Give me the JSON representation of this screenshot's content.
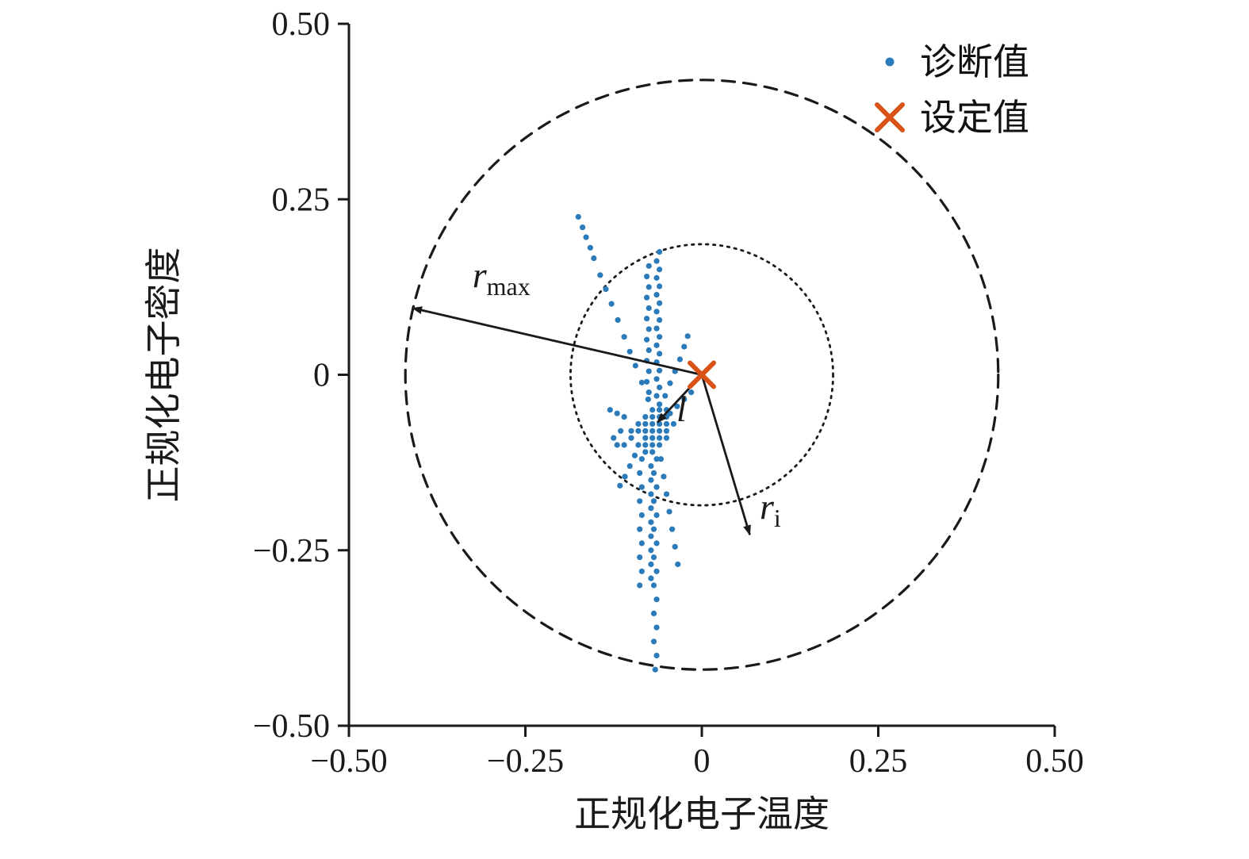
{
  "figure": {
    "background": "#ffffff",
    "axis_color": "#1a1a1a",
    "point_color": "#2b7bba",
    "set_color": "#d95319"
  },
  "chart_data": {
    "type": "scatter",
    "title": "",
    "xlabel": "正规化电子温度",
    "ylabel": "正规化电子密度",
    "xlim": [
      -0.5,
      0.5
    ],
    "ylim": [
      -0.5,
      0.5
    ],
    "grid": false,
    "legend_position": "upper right",
    "xticks": [
      {
        "value": -0.5,
        "label": "−0.50"
      },
      {
        "value": -0.25,
        "label": "−0.25"
      },
      {
        "value": 0,
        "label": "0"
      },
      {
        "value": 0.25,
        "label": "0.25"
      },
      {
        "value": 0.5,
        "label": "0.50"
      }
    ],
    "yticks": [
      {
        "value": -0.5,
        "label": "−0.50"
      },
      {
        "value": -0.25,
        "label": "−0.25"
      },
      {
        "value": 0,
        "label": "0"
      },
      {
        "value": 0.25,
        "label": "0.25"
      },
      {
        "value": 0.5,
        "label": "0.50"
      }
    ],
    "legend": [
      {
        "label": "诊断值",
        "marker": "dot",
        "color": "#2b7bba"
      },
      {
        "label": "设定值",
        "marker": "x",
        "color": "#d95319"
      }
    ],
    "circles": [
      {
        "cx": 0,
        "cy": 0,
        "r": 0.42,
        "style": "dashed"
      },
      {
        "cx": 0,
        "cy": 0,
        "r": 0.186,
        "style": "dotted"
      }
    ],
    "set_point": {
      "x": 0,
      "y": 0
    },
    "annotations": [
      {
        "text": "r",
        "sub": "max",
        "from": [
          0,
          0
        ],
        "to": [
          -0.41,
          0.095
        ],
        "label_at": [
          -0.325,
          0.125
        ]
      },
      {
        "text": "l",
        "sub": "",
        "from": [
          0,
          0
        ],
        "to": [
          -0.063,
          -0.068
        ],
        "label_at": [
          -0.036,
          -0.066
        ]
      },
      {
        "text": "r",
        "sub": "i",
        "from": [
          0,
          0
        ],
        "to": [
          0.068,
          -0.228
        ],
        "label_at": [
          0.082,
          -0.205
        ]
      }
    ],
    "series": [
      {
        "name": "诊断值",
        "points": [
          [
            -0.05,
            -0.05
          ],
          [
            -0.06,
            -0.05
          ],
          [
            -0.07,
            -0.05
          ],
          [
            -0.08,
            -0.06
          ],
          [
            -0.05,
            -0.06
          ],
          [
            -0.06,
            -0.06
          ],
          [
            -0.07,
            -0.06
          ],
          [
            -0.04,
            -0.07
          ],
          [
            -0.05,
            -0.07
          ],
          [
            -0.06,
            -0.07
          ],
          [
            -0.07,
            -0.07
          ],
          [
            -0.08,
            -0.07
          ],
          [
            -0.09,
            -0.07
          ],
          [
            -0.05,
            -0.08
          ],
          [
            -0.06,
            -0.08
          ],
          [
            -0.07,
            -0.08
          ],
          [
            -0.08,
            -0.08
          ],
          [
            -0.09,
            -0.08
          ],
          [
            -0.1,
            -0.08
          ],
          [
            -0.06,
            -0.09
          ],
          [
            -0.07,
            -0.09
          ],
          [
            -0.08,
            -0.09
          ],
          [
            -0.05,
            -0.09
          ],
          [
            -0.1,
            -0.09
          ],
          [
            -0.06,
            -0.1
          ],
          [
            -0.07,
            -0.1
          ],
          [
            -0.08,
            -0.1
          ],
          [
            -0.09,
            -0.1
          ],
          [
            -0.07,
            -0.11
          ],
          [
            -0.08,
            -0.11
          ],
          [
            -0.11,
            -0.06
          ],
          [
            -0.12,
            -0.055
          ],
          [
            -0.13,
            -0.05
          ],
          [
            -0.115,
            -0.08
          ],
          [
            -0.125,
            -0.09
          ],
          [
            -0.11,
            -0.1
          ],
          [
            -0.12,
            -0.1
          ],
          [
            -0.175,
            0.225
          ],
          [
            -0.169,
            0.21
          ],
          [
            -0.164,
            0.196
          ],
          [
            -0.158,
            0.181
          ],
          [
            -0.153,
            0.166
          ],
          [
            -0.144,
            0.142
          ],
          [
            -0.136,
            0.122
          ],
          [
            -0.128,
            0.101
          ],
          [
            -0.119,
            0.078
          ],
          [
            -0.11,
            0.054
          ],
          [
            -0.102,
            0.033
          ],
          [
            -0.094,
            0.013
          ],
          [
            -0.085,
            -0.011
          ],
          [
            -0.076,
            -0.035
          ],
          [
            -0.06,
            0.175
          ],
          [
            -0.064,
            0.162
          ],
          [
            -0.06,
            0.15
          ],
          [
            -0.064,
            0.138
          ],
          [
            -0.06,
            0.126
          ],
          [
            -0.064,
            0.114
          ],
          [
            -0.06,
            0.102
          ],
          [
            -0.064,
            0.09
          ],
          [
            -0.06,
            0.078
          ],
          [
            -0.064,
            0.066
          ],
          [
            -0.06,
            0.054
          ],
          [
            -0.064,
            0.042
          ],
          [
            -0.06,
            0.03
          ],
          [
            -0.064,
            0.018
          ],
          [
            -0.06,
            0.006
          ],
          [
            -0.064,
            -0.006
          ],
          [
            -0.06,
            -0.018
          ],
          [
            -0.064,
            -0.03
          ],
          [
            -0.06,
            -0.042
          ],
          [
            -0.075,
            0.155
          ],
          [
            -0.078,
            0.14
          ],
          [
            -0.075,
            0.125
          ],
          [
            -0.078,
            0.11
          ],
          [
            -0.075,
            0.095
          ],
          [
            -0.078,
            0.08
          ],
          [
            -0.075,
            0.065
          ],
          [
            -0.078,
            0.05
          ],
          [
            -0.075,
            0.035
          ],
          [
            -0.078,
            0.02
          ],
          [
            -0.075,
            0.005
          ],
          [
            -0.078,
            -0.01
          ],
          [
            -0.075,
            -0.025
          ],
          [
            -0.052,
            -0.03
          ],
          [
            -0.045,
            -0.012
          ],
          [
            -0.038,
            0.005
          ],
          [
            -0.031,
            0.022
          ],
          [
            -0.025,
            0.04
          ],
          [
            -0.02,
            0.055
          ],
          [
            -0.045,
            -0.055
          ],
          [
            -0.035,
            -0.045
          ],
          [
            -0.025,
            -0.035
          ],
          [
            -0.015,
            -0.025
          ],
          [
            -0.064,
            -0.12
          ],
          [
            -0.068,
            -0.14
          ],
          [
            -0.064,
            -0.16
          ],
          [
            -0.068,
            -0.18
          ],
          [
            -0.064,
            -0.2
          ],
          [
            -0.068,
            -0.22
          ],
          [
            -0.064,
            -0.24
          ],
          [
            -0.068,
            -0.26
          ],
          [
            -0.064,
            -0.28
          ],
          [
            -0.068,
            -0.3
          ],
          [
            -0.064,
            -0.32
          ],
          [
            -0.068,
            -0.34
          ],
          [
            -0.064,
            -0.36
          ],
          [
            -0.068,
            -0.38
          ],
          [
            -0.064,
            -0.4
          ],
          [
            -0.066,
            -0.42
          ],
          [
            -0.072,
            -0.13
          ],
          [
            -0.072,
            -0.15
          ],
          [
            -0.072,
            -0.17
          ],
          [
            -0.072,
            -0.19
          ],
          [
            -0.072,
            -0.21
          ],
          [
            -0.072,
            -0.23
          ],
          [
            -0.072,
            -0.25
          ],
          [
            -0.072,
            -0.27
          ],
          [
            -0.072,
            -0.29
          ],
          [
            -0.085,
            -0.12
          ],
          [
            -0.088,
            -0.14
          ],
          [
            -0.085,
            -0.16
          ],
          [
            -0.088,
            -0.18
          ],
          [
            -0.085,
            -0.2
          ],
          [
            -0.088,
            -0.22
          ],
          [
            -0.085,
            -0.24
          ],
          [
            -0.088,
            -0.26
          ],
          [
            -0.085,
            -0.28
          ],
          [
            -0.088,
            -0.3
          ],
          [
            -0.058,
            -0.12
          ],
          [
            -0.054,
            -0.145
          ],
          [
            -0.05,
            -0.17
          ],
          [
            -0.046,
            -0.195
          ],
          [
            -0.042,
            -0.22
          ],
          [
            -0.038,
            -0.245
          ],
          [
            -0.034,
            -0.27
          ],
          [
            -0.095,
            -0.115
          ],
          [
            -0.102,
            -0.13
          ],
          [
            -0.109,
            -0.145
          ],
          [
            -0.116,
            -0.158
          ]
        ]
      }
    ]
  }
}
